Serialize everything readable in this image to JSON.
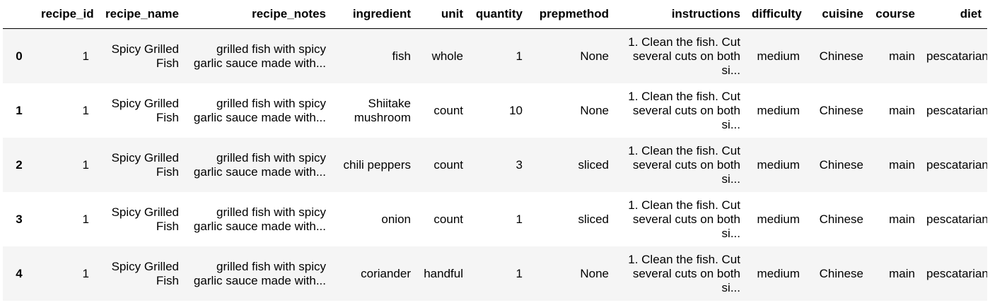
{
  "dataframe": {
    "columns": [
      "recipe_id",
      "recipe_name",
      "recipe_notes",
      "ingredient",
      "unit",
      "quantity",
      "prepmethod",
      "instructions",
      "difficulty",
      "cuisine",
      "course",
      "diet"
    ],
    "rows": [
      {
        "index": "0",
        "cells": [
          "1",
          "Spicy Grilled Fish",
          "grilled fish with spicy garlic sauce made with...",
          "fish",
          "whole",
          "1",
          "None",
          "1. Clean the fish. Cut several cuts on both si...",
          "medium",
          "Chinese",
          "main",
          "pescatarian"
        ]
      },
      {
        "index": "1",
        "cells": [
          "1",
          "Spicy Grilled Fish",
          "grilled fish with spicy garlic sauce made with...",
          "Shiitake mushroom",
          "count",
          "10",
          "None",
          "1. Clean the fish. Cut several cuts on both si...",
          "medium",
          "Chinese",
          "main",
          "pescatarian"
        ]
      },
      {
        "index": "2",
        "cells": [
          "1",
          "Spicy Grilled Fish",
          "grilled fish with spicy garlic sauce made with...",
          "chili peppers",
          "count",
          "3",
          "sliced",
          "1. Clean the fish. Cut several cuts on both si...",
          "medium",
          "Chinese",
          "main",
          "pescatarian"
        ]
      },
      {
        "index": "3",
        "cells": [
          "1",
          "Spicy Grilled Fish",
          "grilled fish with spicy garlic sauce made with...",
          "onion",
          "count",
          "1",
          "sliced",
          "1. Clean the fish. Cut several cuts on both si...",
          "medium",
          "Chinese",
          "main",
          "pescatarian"
        ]
      },
      {
        "index": "4",
        "cells": [
          "1",
          "Spicy Grilled Fish",
          "grilled fish with spicy garlic sauce made with...",
          "coriander",
          "handful",
          "1",
          "None",
          "1. Clean the fish. Cut several cuts on both si...",
          "medium",
          "Chinese",
          "main",
          "pescatarian"
        ]
      }
    ]
  }
}
